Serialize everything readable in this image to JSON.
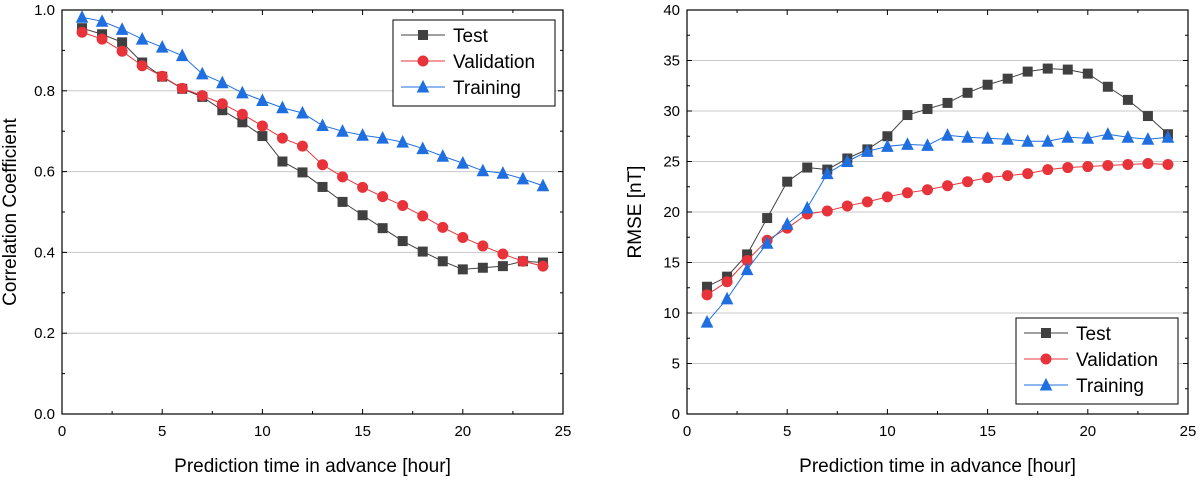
{
  "chart_data": [
    {
      "type": "line",
      "ylabel": "Correlation Coefficient",
      "xlabel": "Prediction time in advance [hour]",
      "xlim": [
        0,
        25
      ],
      "ylim": [
        0.0,
        1.0
      ],
      "xticks": [
        0,
        5,
        10,
        15,
        20,
        25
      ],
      "yticks": [
        0.0,
        0.2,
        0.4,
        0.6,
        0.8,
        1.0
      ],
      "ytick_labels": [
        "0.0",
        "0.2",
        "0.4",
        "0.6",
        "0.8",
        "1.0"
      ],
      "grid": "horizontal",
      "legend_position": "top-right",
      "x": [
        1,
        2,
        3,
        4,
        5,
        6,
        7,
        8,
        9,
        10,
        11,
        12,
        13,
        14,
        15,
        16,
        17,
        18,
        19,
        20,
        21,
        22,
        23,
        24
      ],
      "series": [
        {
          "name": "Test",
          "color": "#404040",
          "marker": "square",
          "values": [
            0.955,
            0.94,
            0.92,
            0.87,
            0.835,
            0.805,
            0.785,
            0.752,
            0.722,
            0.688,
            0.625,
            0.598,
            0.562,
            0.525,
            0.492,
            0.46,
            0.428,
            0.402,
            0.378,
            0.358,
            0.362,
            0.366,
            0.378,
            0.375
          ]
        },
        {
          "name": "Validation",
          "color": "#e8333a",
          "marker": "circle",
          "values": [
            0.945,
            0.928,
            0.898,
            0.862,
            0.836,
            0.806,
            0.788,
            0.768,
            0.742,
            0.713,
            0.683,
            0.663,
            0.617,
            0.587,
            0.561,
            0.538,
            0.516,
            0.49,
            0.462,
            0.437,
            0.416,
            0.396,
            0.378,
            0.366
          ]
        },
        {
          "name": "Training",
          "color": "#1f6fe0",
          "marker": "triangle",
          "values": [
            0.982,
            0.972,
            0.952,
            0.928,
            0.908,
            0.887,
            0.842,
            0.82,
            0.795,
            0.776,
            0.758,
            0.745,
            0.714,
            0.7,
            0.69,
            0.683,
            0.673,
            0.657,
            0.638,
            0.621,
            0.602,
            0.596,
            0.582,
            0.565
          ]
        }
      ]
    },
    {
      "type": "line",
      "ylabel": "RMSE [nT]",
      "xlabel": "Prediction time in advance [hour]",
      "xlim": [
        0,
        25
      ],
      "ylim": [
        0,
        40
      ],
      "xticks": [
        0,
        5,
        10,
        15,
        20,
        25
      ],
      "yticks": [
        0,
        5,
        10,
        15,
        20,
        25,
        30,
        35,
        40
      ],
      "ytick_labels": [
        "0",
        "5",
        "10",
        "15",
        "20",
        "25",
        "30",
        "35",
        "40"
      ],
      "grid": "horizontal",
      "legend_position": "bottom-right",
      "x": [
        1,
        2,
        3,
        4,
        5,
        6,
        7,
        8,
        9,
        10,
        11,
        12,
        13,
        14,
        15,
        16,
        17,
        18,
        19,
        20,
        21,
        22,
        23,
        24
      ],
      "series": [
        {
          "name": "Test",
          "color": "#404040",
          "marker": "square",
          "values": [
            12.6,
            13.6,
            15.8,
            19.4,
            23.0,
            24.4,
            24.2,
            25.3,
            26.2,
            27.5,
            29.6,
            30.2,
            30.8,
            31.8,
            32.6,
            33.2,
            33.9,
            34.2,
            34.1,
            33.7,
            32.4,
            31.1,
            29.5,
            27.7
          ]
        },
        {
          "name": "Validation",
          "color": "#e8333a",
          "marker": "circle",
          "values": [
            11.8,
            13.1,
            15.2,
            17.2,
            18.4,
            19.8,
            20.1,
            20.6,
            21.0,
            21.5,
            21.9,
            22.2,
            22.6,
            23.0,
            23.4,
            23.6,
            23.8,
            24.2,
            24.4,
            24.5,
            24.6,
            24.7,
            24.8,
            24.7
          ]
        },
        {
          "name": "Training",
          "color": "#1f6fe0",
          "marker": "triangle",
          "values": [
            9.1,
            11.4,
            14.3,
            16.9,
            18.8,
            20.4,
            23.8,
            25.0,
            26.0,
            26.5,
            26.7,
            26.6,
            27.6,
            27.4,
            27.3,
            27.2,
            27.0,
            27.0,
            27.4,
            27.3,
            27.7,
            27.4,
            27.2,
            27.4
          ]
        }
      ]
    }
  ]
}
